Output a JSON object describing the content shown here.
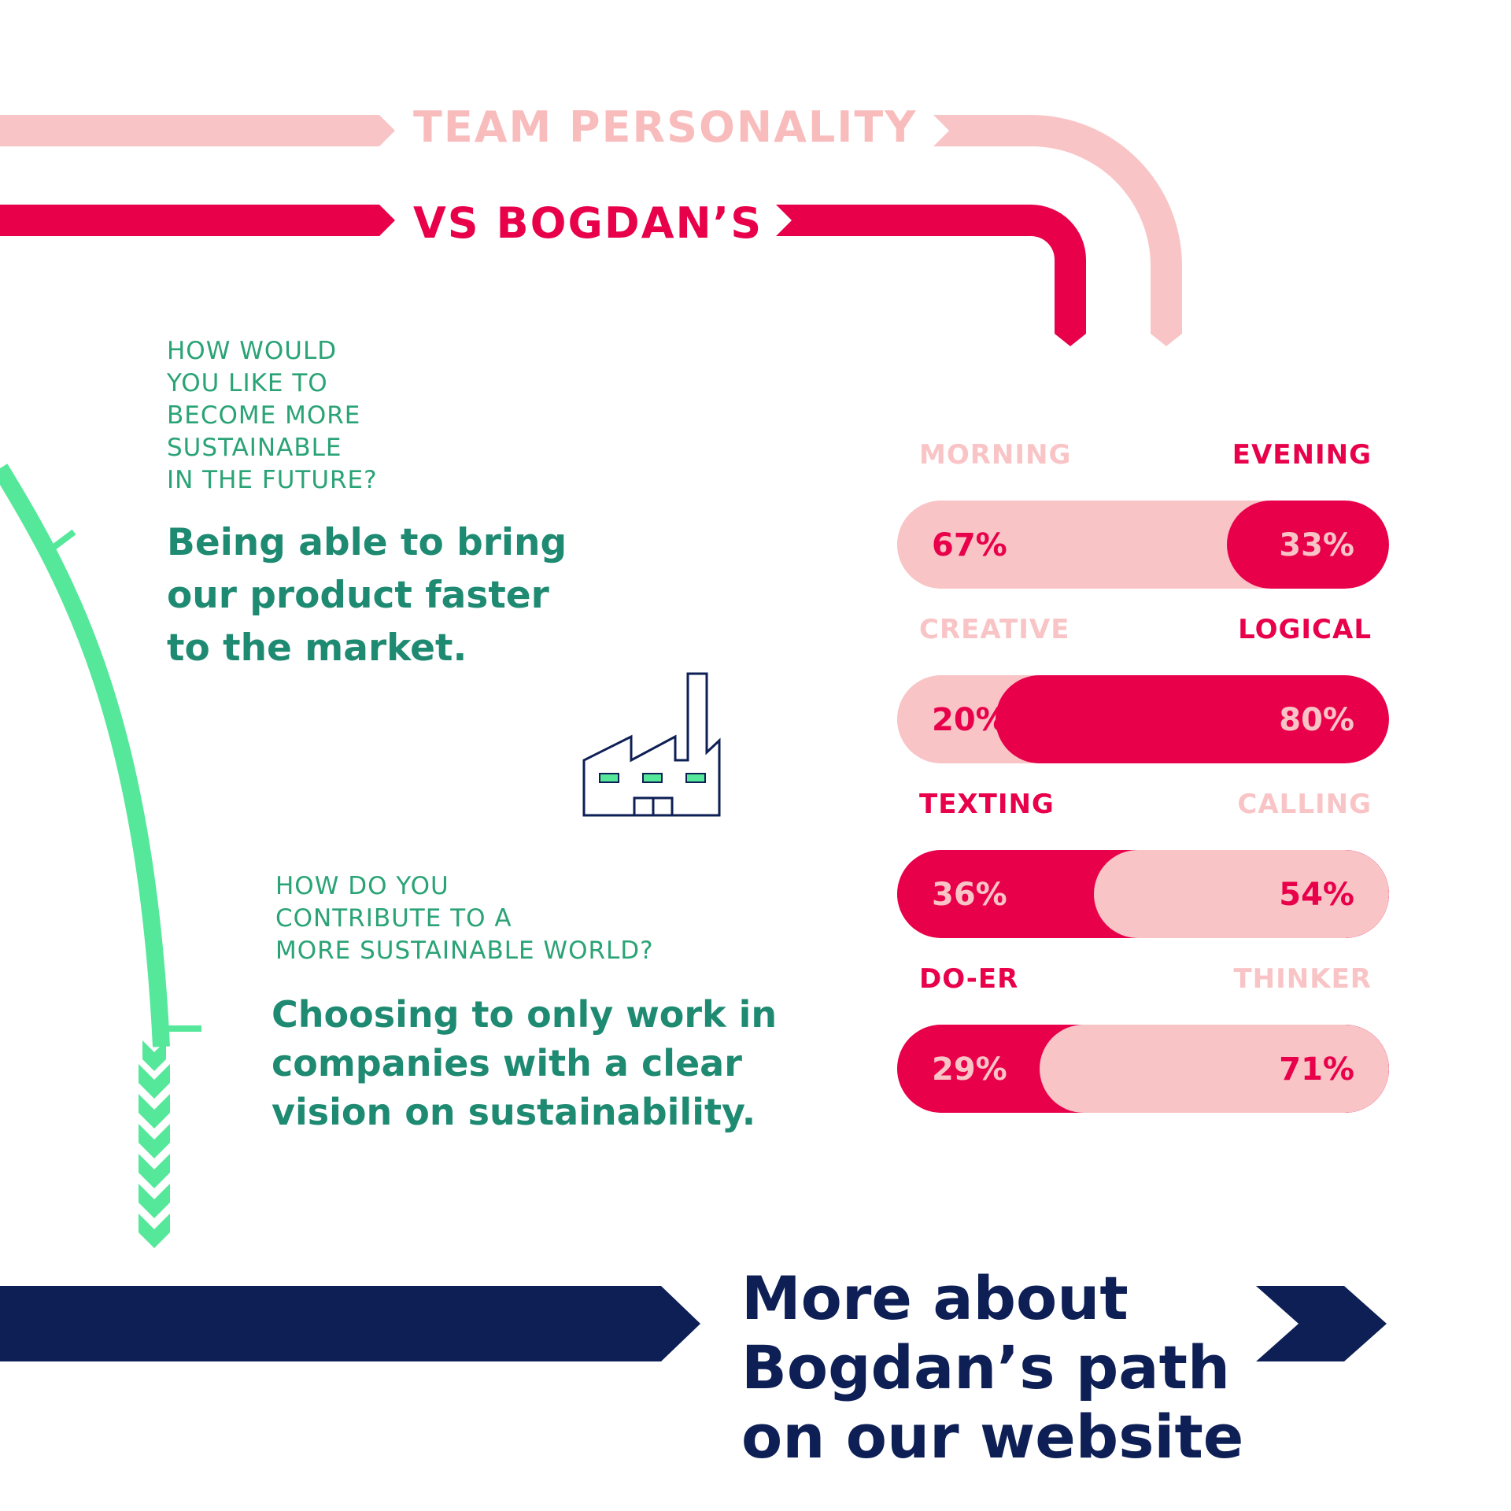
{
  "header": {
    "title": "TEAM PERSONALITY",
    "subtitle": "VS BOGDAN’S"
  },
  "colors": {
    "pink_light": "#f9c4c6",
    "pink_strong": "#e8004b",
    "green": "#55e89a",
    "teal_text": "#1f8a72",
    "navy": "#0d1f55"
  },
  "qa": [
    {
      "question_lines": [
        "HOW WOULD",
        "YOU LIKE TO",
        "BECOME MORE",
        "SUSTAINABLE",
        "IN THE FUTURE?"
      ],
      "answer_lines": [
        "Being able to bring",
        "our product faster",
        "to the market."
      ]
    },
    {
      "question_lines": [
        "HOW DO YOU",
        "CONTRIBUTE TO A",
        "MORE SUSTAINABLE WORLD?"
      ],
      "answer_lines": [
        "Choosing to only work in",
        "companies with a clear",
        "vision on sustainability."
      ]
    }
  ],
  "traits": [
    {
      "left_label": "MORNING",
      "right_label": "EVENING",
      "left_pct": "67%",
      "right_pct": "33%",
      "left_value": 67,
      "right_value": 33,
      "bogdan_side": "right"
    },
    {
      "left_label": "CREATIVE",
      "right_label": "LOGICAL",
      "left_pct": "20%",
      "right_pct": "80%",
      "left_value": 20,
      "right_value": 80,
      "bogdan_side": "right"
    },
    {
      "left_label": "TEXTING",
      "right_label": "CALLING",
      "left_pct": "36%",
      "right_pct": "54%",
      "left_value": 36,
      "right_value": 54,
      "bogdan_side": "left"
    },
    {
      "left_label": "DO-ER",
      "right_label": "THINKER",
      "left_pct": "29%",
      "right_pct": "71%",
      "left_value": 29,
      "right_value": 71,
      "bogdan_side": "left"
    }
  ],
  "cta": {
    "lines": [
      "More about",
      "Bogdan’s path",
      "on our website"
    ]
  },
  "icons": [
    "factory-icon"
  ]
}
